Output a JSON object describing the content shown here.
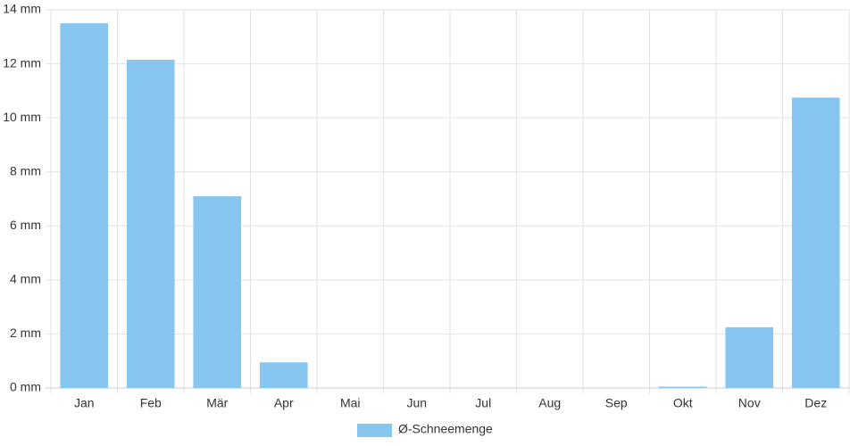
{
  "chart_data": {
    "type": "bar",
    "categories": [
      "Jan",
      "Feb",
      "Mär",
      "Apr",
      "Mai",
      "Jun",
      "Jul",
      "Aug",
      "Sep",
      "Okt",
      "Nov",
      "Dez"
    ],
    "series": [
      {
        "name": "Ø-Schneemenge",
        "color": "#88c6f2",
        "values": [
          13.5,
          12.15,
          7.1,
          0.95,
          0,
          0,
          0,
          0,
          0,
          0.05,
          2.25,
          10.75
        ]
      }
    ],
    "ylim": [
      0,
      14
    ],
    "yticks": [
      {
        "value": 0,
        "label": "0 mm"
      },
      {
        "value": 2,
        "label": "2 mm"
      },
      {
        "value": 4,
        "label": "4 mm"
      },
      {
        "value": 6,
        "label": "6 mm"
      },
      {
        "value": 8,
        "label": "8 mm"
      },
      {
        "value": 10,
        "label": "10 mm"
      },
      {
        "value": 12,
        "label": "12 mm"
      },
      {
        "value": 14,
        "label": "14 mm"
      }
    ],
    "grid": true,
    "legend": "bottom"
  }
}
